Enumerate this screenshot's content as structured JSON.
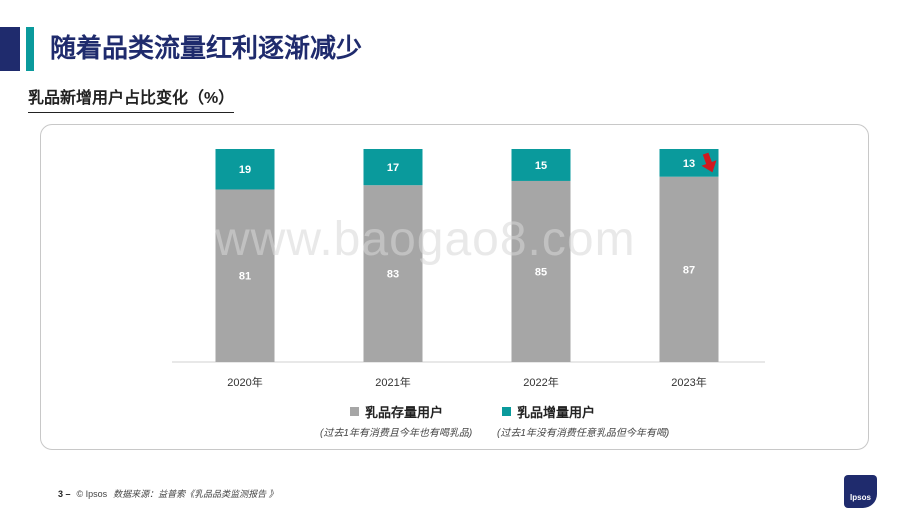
{
  "title": "随着品类流量红利逐渐减少",
  "subtitle": "乳品新增用户占比变化（%）",
  "watermark": "www.baogao8.com",
  "colors": {
    "existing": "#a6a6a6",
    "new": "#0a9a9c",
    "title": "#1f2b6d",
    "decline_arrow": "#d0191f"
  },
  "chart_data": {
    "type": "bar",
    "stacked": true,
    "categories": [
      "2020年",
      "2021年",
      "2022年",
      "2023年"
    ],
    "series": [
      {
        "name": "乳品存量用户",
        "values": [
          81,
          83,
          85,
          87
        ]
      },
      {
        "name": "乳品增量用户",
        "values": [
          19,
          17,
          15,
          13
        ]
      }
    ],
    "ylim": [
      0,
      100
    ],
    "grid": false,
    "legend_position": "bottom",
    "annotations": [
      {
        "category": "2023年",
        "icon": "down-arrow-icon"
      }
    ]
  },
  "legend": {
    "items": [
      {
        "label": "乳品存量用户",
        "note": "(过去1年有消费且今年也有喝乳品)"
      },
      {
        "label": "乳品增量用户",
        "note": "(过去1年没有消费任意乳品但今年有喝)"
      }
    ]
  },
  "footer": {
    "page_number": "3 –",
    "copyright": "© Ipsos",
    "source": "数据来源：益普索《乳品品类监测报告 》"
  },
  "logo_text": "Ipsos"
}
